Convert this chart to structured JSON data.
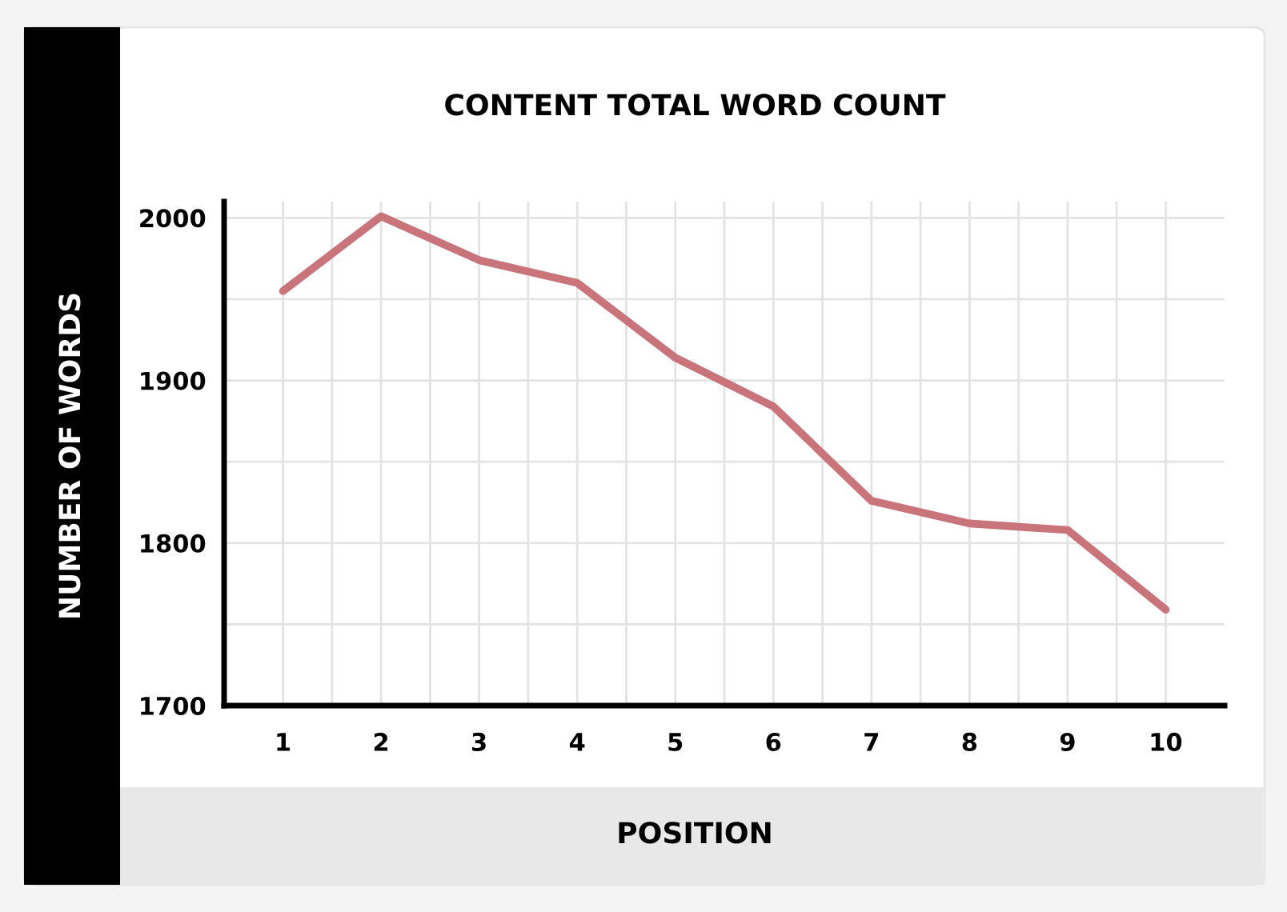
{
  "chart_data": {
    "type": "line",
    "title": "CONTENT TOTAL WORD COUNT",
    "xlabel": "POSITION",
    "ylabel": "NUMBER OF WORDS",
    "categories": [
      "1",
      "2",
      "3",
      "4",
      "5",
      "6",
      "7",
      "8",
      "9",
      "10"
    ],
    "series": [
      {
        "color": "#c9737a",
        "values": [
          1955,
          2001,
          1974,
          1960,
          1914,
          1884,
          1826,
          1812,
          1808,
          1759
        ]
      }
    ],
    "ylim": [
      1700,
      2010
    ],
    "yticks": [
      1700,
      {
        "value": 1750,
        "label": null
      },
      1800,
      {
        "value": 1850,
        "label": null
      },
      1900,
      {
        "value": 1950,
        "label": null
      },
      2000
    ],
    "grid": true,
    "legend": false
  }
}
